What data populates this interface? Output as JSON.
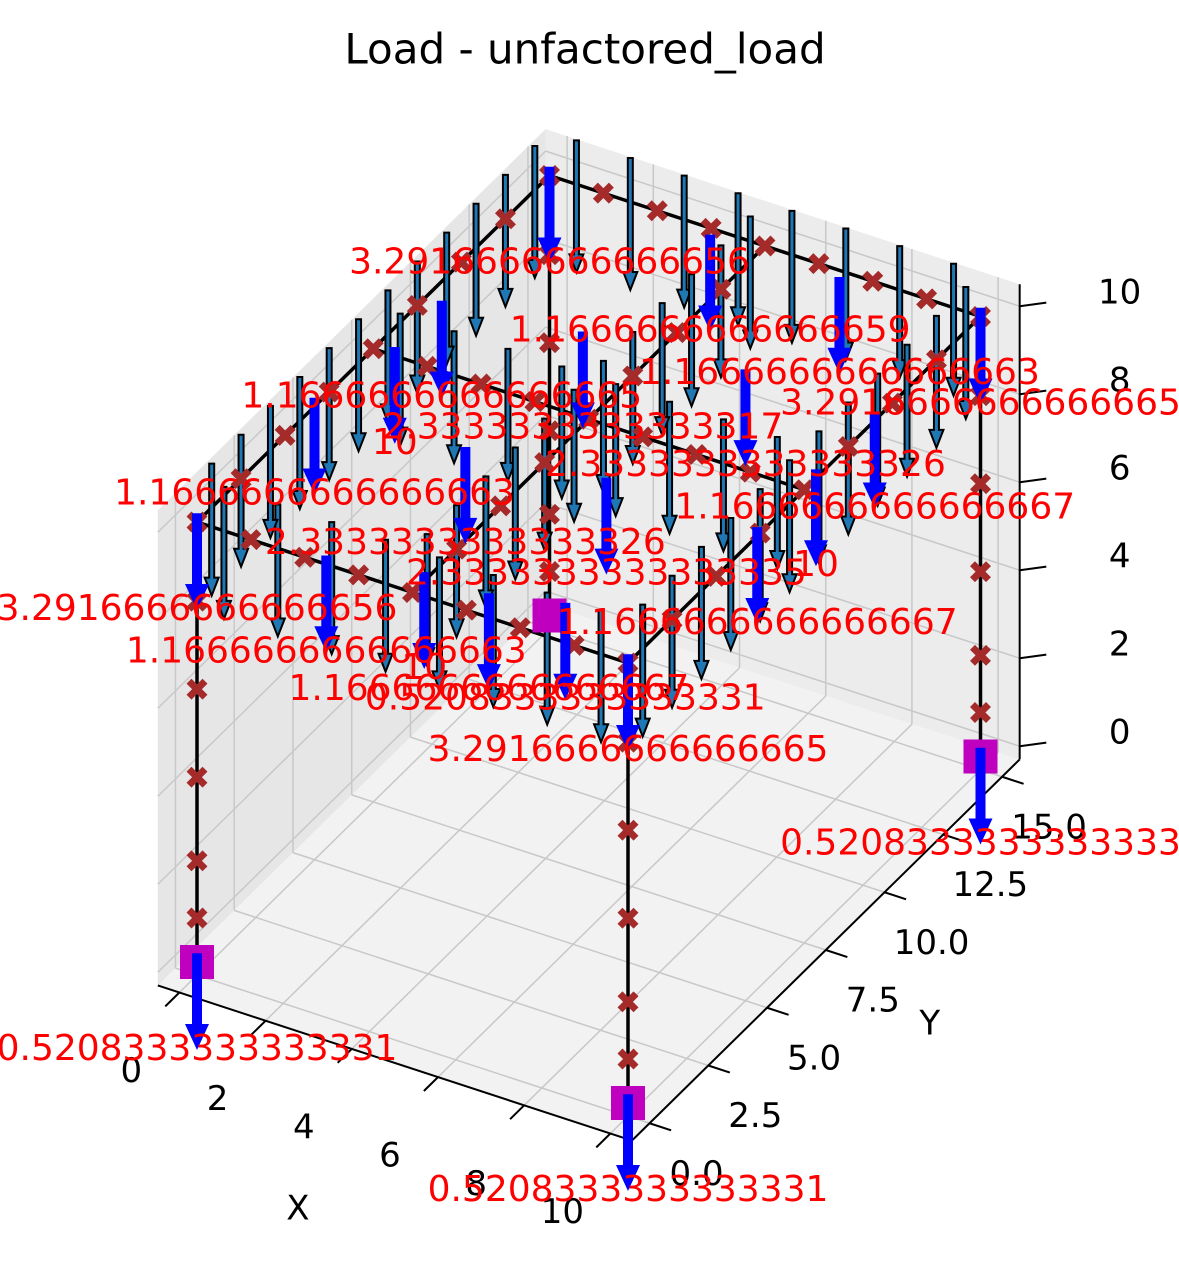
{
  "chart_data": {
    "type": "frame3d",
    "title": "Load - unfactored_load",
    "xlabel": "X",
    "ylabel": "Y",
    "xlim": [
      -0.5,
      10.5
    ],
    "ylim": [
      -0.75,
      15.75
    ],
    "zlim": [
      -0.3,
      10.5
    ],
    "xticks": [
      0,
      2,
      4,
      6,
      8,
      10
    ],
    "yticks": [
      {
        "value": 0,
        "label": "0.0"
      },
      {
        "value": 2.5,
        "label": "2.5"
      },
      {
        "value": 5,
        "label": "5.0"
      },
      {
        "value": 7.5,
        "label": "7.5"
      },
      {
        "value": 10,
        "label": "10.0"
      },
      {
        "value": 12.5,
        "label": "12.5"
      },
      {
        "value": 15,
        "label": "15.0"
      }
    ],
    "zticks": [
      0,
      2,
      4,
      6,
      8,
      10
    ],
    "grid": true,
    "member_color": "#000000",
    "node_color": "#a52a2a",
    "support_color": "#bf00bf",
    "load_color": "#0000ff",
    "udl_color": "#1f77b4",
    "label_color": "#ff0000",
    "members": [
      {
        "start": [
          0,
          0,
          0
        ],
        "end": [
          0,
          0,
          10
        ],
        "udl": false
      },
      {
        "start": [
          10,
          0,
          0
        ],
        "end": [
          10,
          0,
          10
        ],
        "udl": false
      },
      {
        "start": [
          10,
          15,
          0
        ],
        "end": [
          10,
          15,
          10
        ],
        "udl": false
      },
      {
        "start": [
          0,
          15,
          0
        ],
        "end": [
          0,
          15,
          10
        ],
        "udl": false
      },
      {
        "start": [
          0,
          0,
          10
        ],
        "end": [
          10,
          0,
          10
        ],
        "udl": true
      },
      {
        "start": [
          0,
          7.5,
          10
        ],
        "end": [
          10,
          7.5,
          10
        ],
        "udl": true
      },
      {
        "start": [
          0,
          15,
          10
        ],
        "end": [
          10,
          15,
          10
        ],
        "udl": true
      },
      {
        "start": [
          0,
          0,
          10
        ],
        "end": [
          0,
          15,
          10
        ],
        "udl": true
      },
      {
        "start": [
          5,
          0,
          10
        ],
        "end": [
          5,
          15,
          10
        ],
        "udl": true
      },
      {
        "start": [
          10,
          0,
          10
        ],
        "end": [
          10,
          15,
          10
        ],
        "udl": true
      }
    ],
    "nodes": [
      [
        0,
        0,
        1
      ],
      [
        0,
        0,
        2.3
      ],
      [
        0,
        0,
        4.2
      ],
      [
        0,
        0,
        6.2
      ],
      [
        0,
        0,
        8.2
      ],
      [
        10,
        0,
        1
      ],
      [
        10,
        0,
        2.3
      ],
      [
        10,
        0,
        4.2
      ],
      [
        10,
        0,
        6.2
      ],
      [
        10,
        0,
        8.2
      ],
      [
        10,
        15,
        1
      ],
      [
        10,
        15,
        2.3
      ],
      [
        10,
        15,
        4.2
      ],
      [
        10,
        15,
        6.2
      ],
      [
        10,
        15,
        8.2
      ],
      [
        0,
        15,
        1
      ],
      [
        0,
        15,
        2.3
      ],
      [
        0,
        15,
        4.2
      ],
      [
        0,
        15,
        6.2
      ],
      [
        0,
        15,
        8.2
      ],
      [
        0,
        0,
        10
      ],
      [
        1.25,
        0,
        10
      ],
      [
        2.5,
        0,
        10
      ],
      [
        3.75,
        0,
        10
      ],
      [
        5,
        0,
        10
      ],
      [
        6.25,
        0,
        10
      ],
      [
        7.5,
        0,
        10
      ],
      [
        8.75,
        0,
        10
      ],
      [
        10,
        0,
        10
      ],
      [
        0,
        7.5,
        10
      ],
      [
        1.25,
        7.5,
        10
      ],
      [
        2.5,
        7.5,
        10
      ],
      [
        3.75,
        7.5,
        10
      ],
      [
        5,
        7.5,
        10
      ],
      [
        6.25,
        7.5,
        10
      ],
      [
        7.5,
        7.5,
        10
      ],
      [
        8.75,
        7.5,
        10
      ],
      [
        10,
        7.5,
        10
      ],
      [
        0,
        15,
        10
      ],
      [
        1.25,
        15,
        10
      ],
      [
        2.5,
        15,
        10
      ],
      [
        3.75,
        15,
        10
      ],
      [
        5,
        15,
        10
      ],
      [
        6.25,
        15,
        10
      ],
      [
        7.5,
        15,
        10
      ],
      [
        8.75,
        15,
        10
      ],
      [
        10,
        15,
        10
      ],
      [
        0,
        1.875,
        10
      ],
      [
        0,
        3.75,
        10
      ],
      [
        0,
        5.625,
        10
      ],
      [
        0,
        9.375,
        10
      ],
      [
        0,
        11.25,
        10
      ],
      [
        0,
        13.125,
        10
      ],
      [
        5,
        1.875,
        10
      ],
      [
        5,
        3.75,
        10
      ],
      [
        5,
        5.625,
        10
      ],
      [
        5,
        9.375,
        10
      ],
      [
        5,
        11.25,
        10
      ],
      [
        5,
        13.125,
        10
      ],
      [
        10,
        1.875,
        10
      ],
      [
        10,
        3.75,
        10
      ],
      [
        10,
        5.625,
        10
      ],
      [
        10,
        9.375,
        10
      ],
      [
        10,
        11.25,
        10
      ],
      [
        10,
        13.125,
        10
      ]
    ],
    "supports": [
      [
        0,
        0,
        0
      ],
      [
        10,
        0,
        0
      ],
      [
        10,
        15,
        0
      ],
      [
        0,
        15,
        0
      ]
    ],
    "point_loads": [
      {
        "x": 0,
        "y": 15,
        "z": 10,
        "value": 3.2916666666666656
      },
      {
        "x": 4,
        "y": 14.5,
        "z": 10,
        "value": 1.1666666666666659
      },
      {
        "x": 7,
        "y": 14.5,
        "z": 10,
        "value": 1.1666666666666663
      },
      {
        "x": 10,
        "y": 15,
        "z": 10,
        "value": 3.2916666666666665
      },
      {
        "x": 0.5,
        "y": 9.5,
        "z": 10,
        "value": 1.1666666666666665
      },
      {
        "x": 3.5,
        "y": 10,
        "z": 10,
        "value": 2.3333333333333317
      },
      {
        "x": 0.5,
        "y": 7.5,
        "z": 10,
        "value": 10
      },
      {
        "x": 7,
        "y": 10.5,
        "z": 10,
        "value": 2.3333333333333326
      },
      {
        "x": 0,
        "y": 5,
        "z": 10,
        "value": 1.1666666666666663
      },
      {
        "x": 10,
        "y": 10.5,
        "z": 10,
        "value": 1.1666666666666667
      },
      {
        "x": 3.5,
        "y": 5,
        "z": 10,
        "value": 2.3333333333333326
      },
      {
        "x": 0,
        "y": 0,
        "z": 10,
        "value": 3.2916666666666656
      },
      {
        "x": 10,
        "y": 8,
        "z": 10,
        "value": 10
      },
      {
        "x": 6.5,
        "y": 5.5,
        "z": 10,
        "value": 2.3333333333333335
      },
      {
        "x": 3,
        "y": 0,
        "z": 10,
        "value": 1.1666666666666663
      },
      {
        "x": 10,
        "y": 5.5,
        "z": 10,
        "value": 1.1666666666666667
      },
      {
        "x": 5,
        "y": 0.5,
        "z": 10,
        "value": 10
      },
      {
        "x": 6.5,
        "y": 0.5,
        "z": 10,
        "value": 1.1666666666666667
      },
      {
        "x": 8,
        "y": 1,
        "z": 10,
        "value": 0.5208333333333331
      },
      {
        "x": 10,
        "y": 0,
        "z": 10,
        "value": 3.2916666666666665
      },
      {
        "x": 10,
        "y": 15,
        "z": 0,
        "value": 0.5208333333333333
      },
      {
        "x": 0,
        "y": 0,
        "z": 0,
        "value": 0.5208333333333331
      },
      {
        "x": 10,
        "y": 0,
        "z": 0,
        "value": 0.5208333333333331
      }
    ]
  }
}
